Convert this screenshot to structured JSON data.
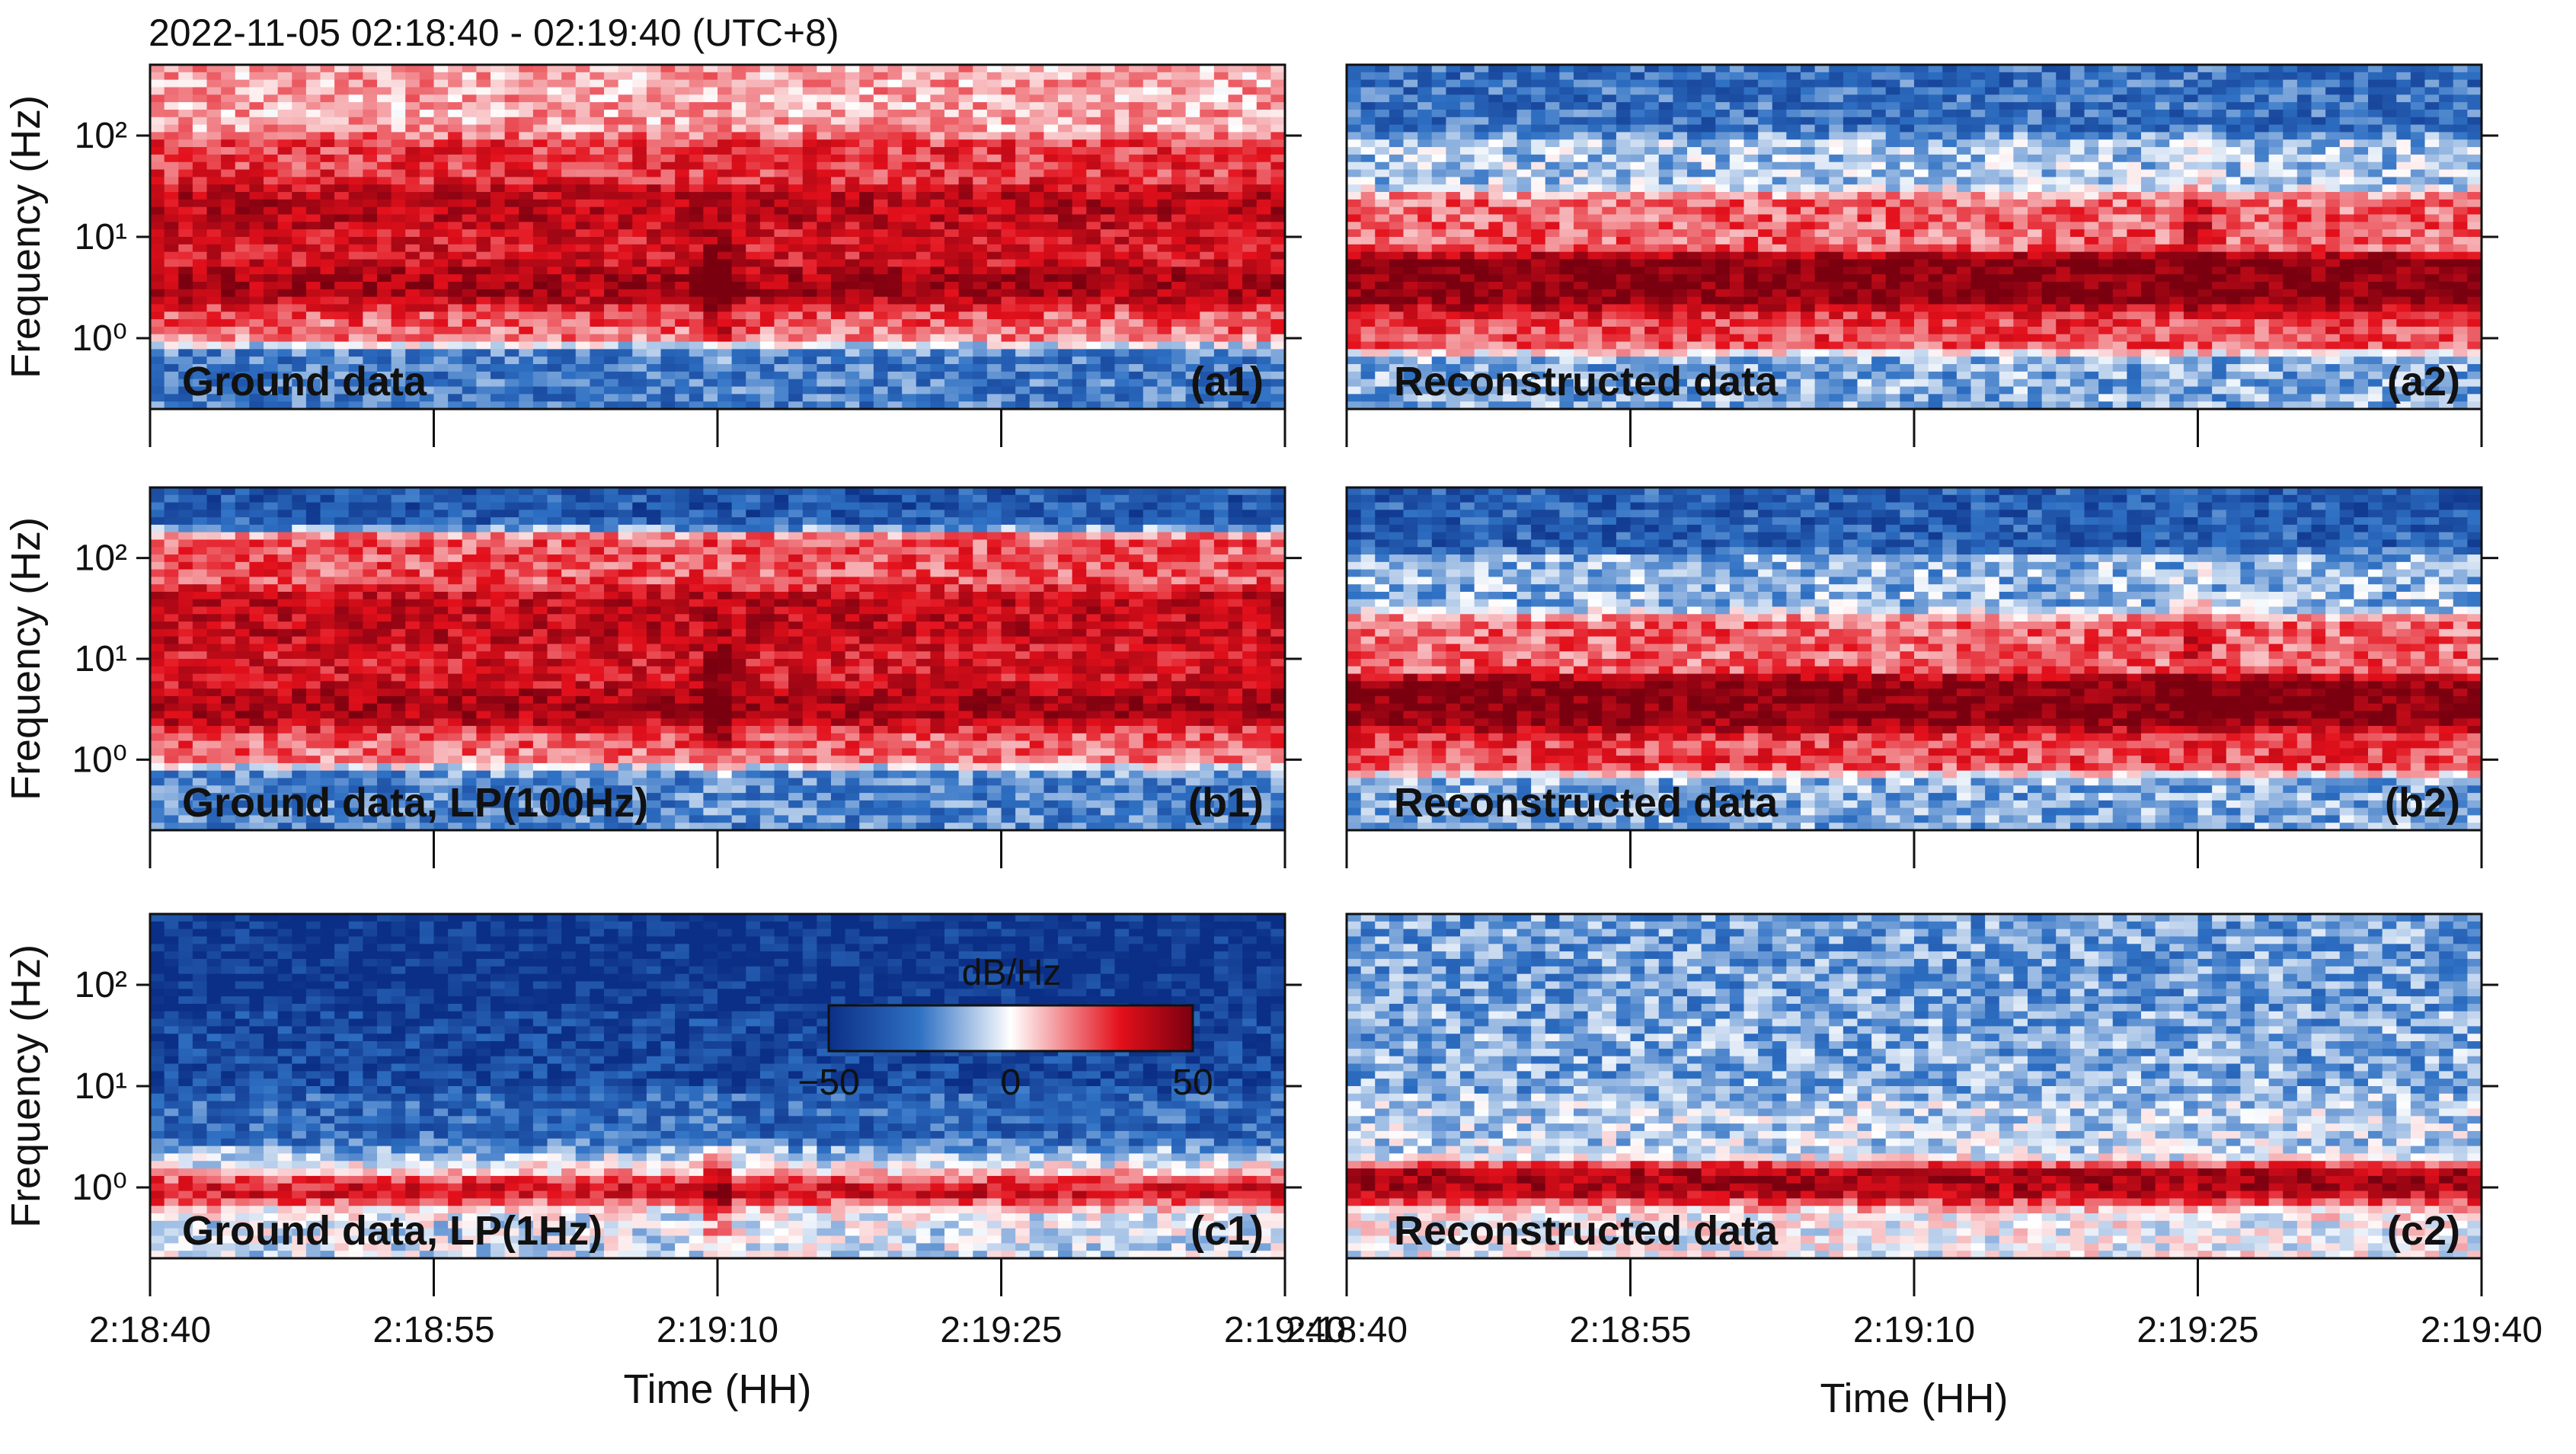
{
  "header": {
    "time_range": "2022-11-05 02:18:40 - 02:19:40 (UTC+8)"
  },
  "colors": {
    "low": "#0b2f86",
    "mid": "#ffffff",
    "high": "#e3101b",
    "max": "#7a0010"
  },
  "colorbar": {
    "title": "dB/Hz",
    "ticks": [
      "−50",
      "0",
      "50"
    ],
    "range": [
      -50,
      50
    ]
  },
  "chart_data": [
    {
      "id": "a1",
      "type": "heatmap",
      "panel_label": "(a1)",
      "annotation": "Ground data",
      "ylabel": "Frequency (Hz)",
      "yscale": "log",
      "ylim": [
        0.2,
        500
      ],
      "yticks": [
        "10⁰",
        "10¹",
        "10²"
      ],
      "xticks": [],
      "xlabel": "",
      "bands": [
        {
          "f": 200,
          "level": 0.25
        },
        {
          "f": 50,
          "level": 0.6
        },
        {
          "f": 20,
          "level": 0.9
        },
        {
          "f": 8,
          "level": 0.75
        },
        {
          "f": 3,
          "level": 1.0
        },
        {
          "f": 1.5,
          "level": 0.45
        },
        {
          "f": 0.5,
          "level": -0.5
        }
      ],
      "events": [
        {
          "t": 30,
          "f": 3,
          "level": 1.0
        }
      ]
    },
    {
      "id": "a2",
      "type": "heatmap",
      "panel_label": "(a2)",
      "annotation": "Reconstructed data",
      "ylabel": "",
      "yscale": "log",
      "ylim": [
        0.2,
        500
      ],
      "yticks": [],
      "xticks": [],
      "xlabel": "",
      "bands": [
        {
          "f": 200,
          "level": -0.55
        },
        {
          "f": 50,
          "level": -0.2
        },
        {
          "f": 15,
          "level": 0.45
        },
        {
          "f": 3,
          "level": 1.15
        },
        {
          "f": 1.3,
          "level": 0.55
        },
        {
          "f": 0.4,
          "level": -0.3
        }
      ],
      "events": [
        {
          "t": 45,
          "f": 15,
          "level": 0.8
        }
      ]
    },
    {
      "id": "b1",
      "type": "heatmap",
      "panel_label": "(b1)",
      "annotation": "Ground data, LP(100Hz)",
      "ylabel": "Frequency (Hz)",
      "yscale": "log",
      "ylim": [
        0.2,
        500
      ],
      "yticks": [
        "10⁰",
        "10¹",
        "10²"
      ],
      "xticks": [],
      "xlabel": "",
      "bands": [
        {
          "f": 350,
          "level": -0.7
        },
        {
          "f": 100,
          "level": 0.5
        },
        {
          "f": 25,
          "level": 0.85
        },
        {
          "f": 8,
          "level": 0.75
        },
        {
          "f": 3,
          "level": 1.0
        },
        {
          "f": 1.5,
          "level": 0.45
        },
        {
          "f": 0.5,
          "level": -0.45
        }
      ],
      "events": [
        {
          "t": 30,
          "f": 3,
          "level": 1.0
        }
      ]
    },
    {
      "id": "b2",
      "type": "heatmap",
      "panel_label": "(b2)",
      "annotation": "Reconstructed data",
      "ylabel": "",
      "yscale": "log",
      "ylim": [
        0.2,
        500
      ],
      "yticks": [],
      "xticks": [],
      "xlabel": "",
      "bands": [
        {
          "f": 250,
          "level": -0.65
        },
        {
          "f": 50,
          "level": -0.25
        },
        {
          "f": 15,
          "level": 0.45
        },
        {
          "f": 3,
          "level": 1.15
        },
        {
          "f": 1.3,
          "level": 0.55
        },
        {
          "f": 0.4,
          "level": -0.3
        }
      ],
      "events": [
        {
          "t": 45,
          "f": 15,
          "level": 0.8
        }
      ]
    },
    {
      "id": "c1",
      "type": "heatmap",
      "panel_label": "(c1)",
      "annotation": "Ground data, LP(1Hz)",
      "ylabel": "Frequency (Hz)",
      "yscale": "log",
      "ylim": [
        0.2,
        500
      ],
      "yticks": [
        "10⁰",
        "10¹",
        "10²"
      ],
      "xticks": [
        "2:18:40",
        "2:18:55",
        "2:19:10",
        "2:19:25",
        "2:19:40"
      ],
      "xlabel": "Time (HH)",
      "bands": [
        {
          "f": 150,
          "level": -0.95
        },
        {
          "f": 20,
          "level": -0.8
        },
        {
          "f": 4,
          "level": -0.6
        },
        {
          "f": 1.6,
          "level": -0.2
        },
        {
          "f": 1.0,
          "level": 1.0
        },
        {
          "f": 0.5,
          "level": -0.1
        }
      ],
      "events": [
        {
          "t": 30,
          "f": 0.8,
          "level": 1.0
        }
      ]
    },
    {
      "id": "c2",
      "type": "heatmap",
      "panel_label": "(c2)",
      "annotation": "Reconstructed data",
      "ylabel": "",
      "yscale": "log",
      "ylim": [
        0.2,
        500
      ],
      "yticks": [],
      "xticks": [
        "2:18:40",
        "2:18:55",
        "2:19:10",
        "2:19:25",
        "2:19:40"
      ],
      "xlabel": "Time (HH)",
      "bands": [
        {
          "f": 150,
          "level": -0.35
        },
        {
          "f": 20,
          "level": -0.3
        },
        {
          "f": 3,
          "level": -0.15
        },
        {
          "f": 1.0,
          "level": 1.0
        },
        {
          "f": 0.5,
          "level": 0.0
        }
      ],
      "events": []
    }
  ]
}
